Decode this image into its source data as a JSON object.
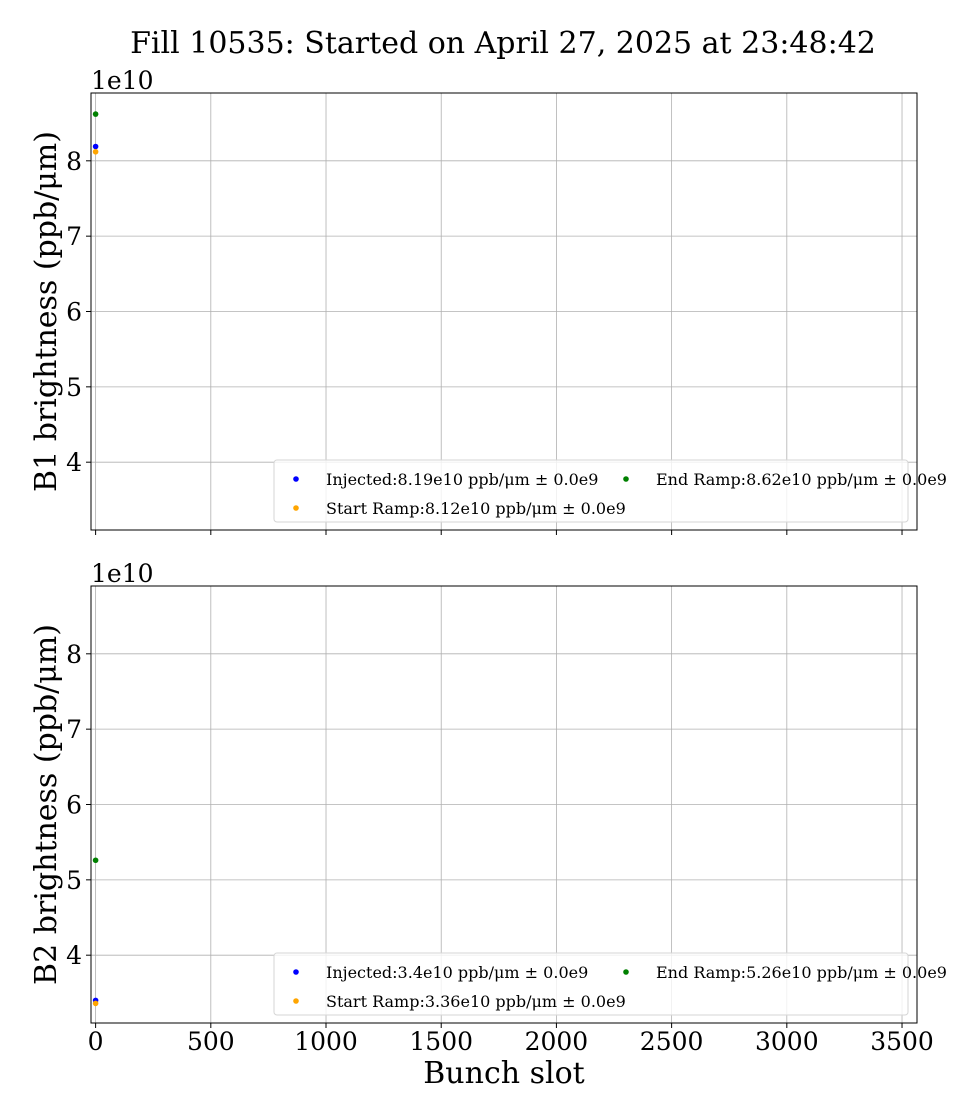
{
  "figure": {
    "title": "Fill 10535: Started on April 27, 2025 at 23:48:42"
  },
  "chart_data": [
    {
      "type": "scatter",
      "ylabel": "B1 brightness (ppb/μm)",
      "xlabel": "",
      "offset_label": "1e10",
      "xlim": [
        -20,
        3565
      ],
      "ylim": [
        3.1,
        8.9
      ],
      "xticks": [
        0,
        500,
        1000,
        1500,
        2000,
        2500,
        3000,
        3500
      ],
      "yticks": [
        4,
        5,
        6,
        7,
        8
      ],
      "show_xtick_labels": false,
      "grid": true,
      "legend_placement": "lower-right",
      "series": [
        {
          "name": "Injected:8.19e10 ppb/μm ± 0.0e9",
          "color": "#0000ff",
          "x": [
            0
          ],
          "y": [
            8.19
          ]
        },
        {
          "name": "Start Ramp:8.12e10 ppb/μm ± 0.0e9",
          "color": "#ffa500",
          "x": [
            0
          ],
          "y": [
            8.12
          ]
        },
        {
          "name": "End Ramp:8.62e10 ppb/μm ± 0.0e9",
          "color": "#008000",
          "x": [
            0
          ],
          "y": [
            8.62
          ]
        }
      ]
    },
    {
      "type": "scatter",
      "ylabel": "B2 brightness (ppb/μm)",
      "xlabel": "Bunch slot",
      "offset_label": "1e10",
      "xlim": [
        -20,
        3565
      ],
      "ylim": [
        3.1,
        8.9
      ],
      "xticks": [
        0,
        500,
        1000,
        1500,
        2000,
        2500,
        3000,
        3500
      ],
      "yticks": [
        4,
        5,
        6,
        7,
        8
      ],
      "show_xtick_labels": true,
      "grid": true,
      "legend_placement": "lower-right",
      "series": [
        {
          "name": "Injected:3.4e10 ppb/μm ± 0.0e9",
          "color": "#0000ff",
          "x": [
            0
          ],
          "y": [
            3.4
          ]
        },
        {
          "name": "Start Ramp:3.36e10 ppb/μm ± 0.0e9",
          "color": "#ffa500",
          "x": [
            0
          ],
          "y": [
            3.36
          ]
        },
        {
          "name": "End Ramp:5.26e10 ppb/μm ± 0.0e9",
          "color": "#008000",
          "x": [
            0
          ],
          "y": [
            5.26
          ]
        }
      ]
    }
  ]
}
